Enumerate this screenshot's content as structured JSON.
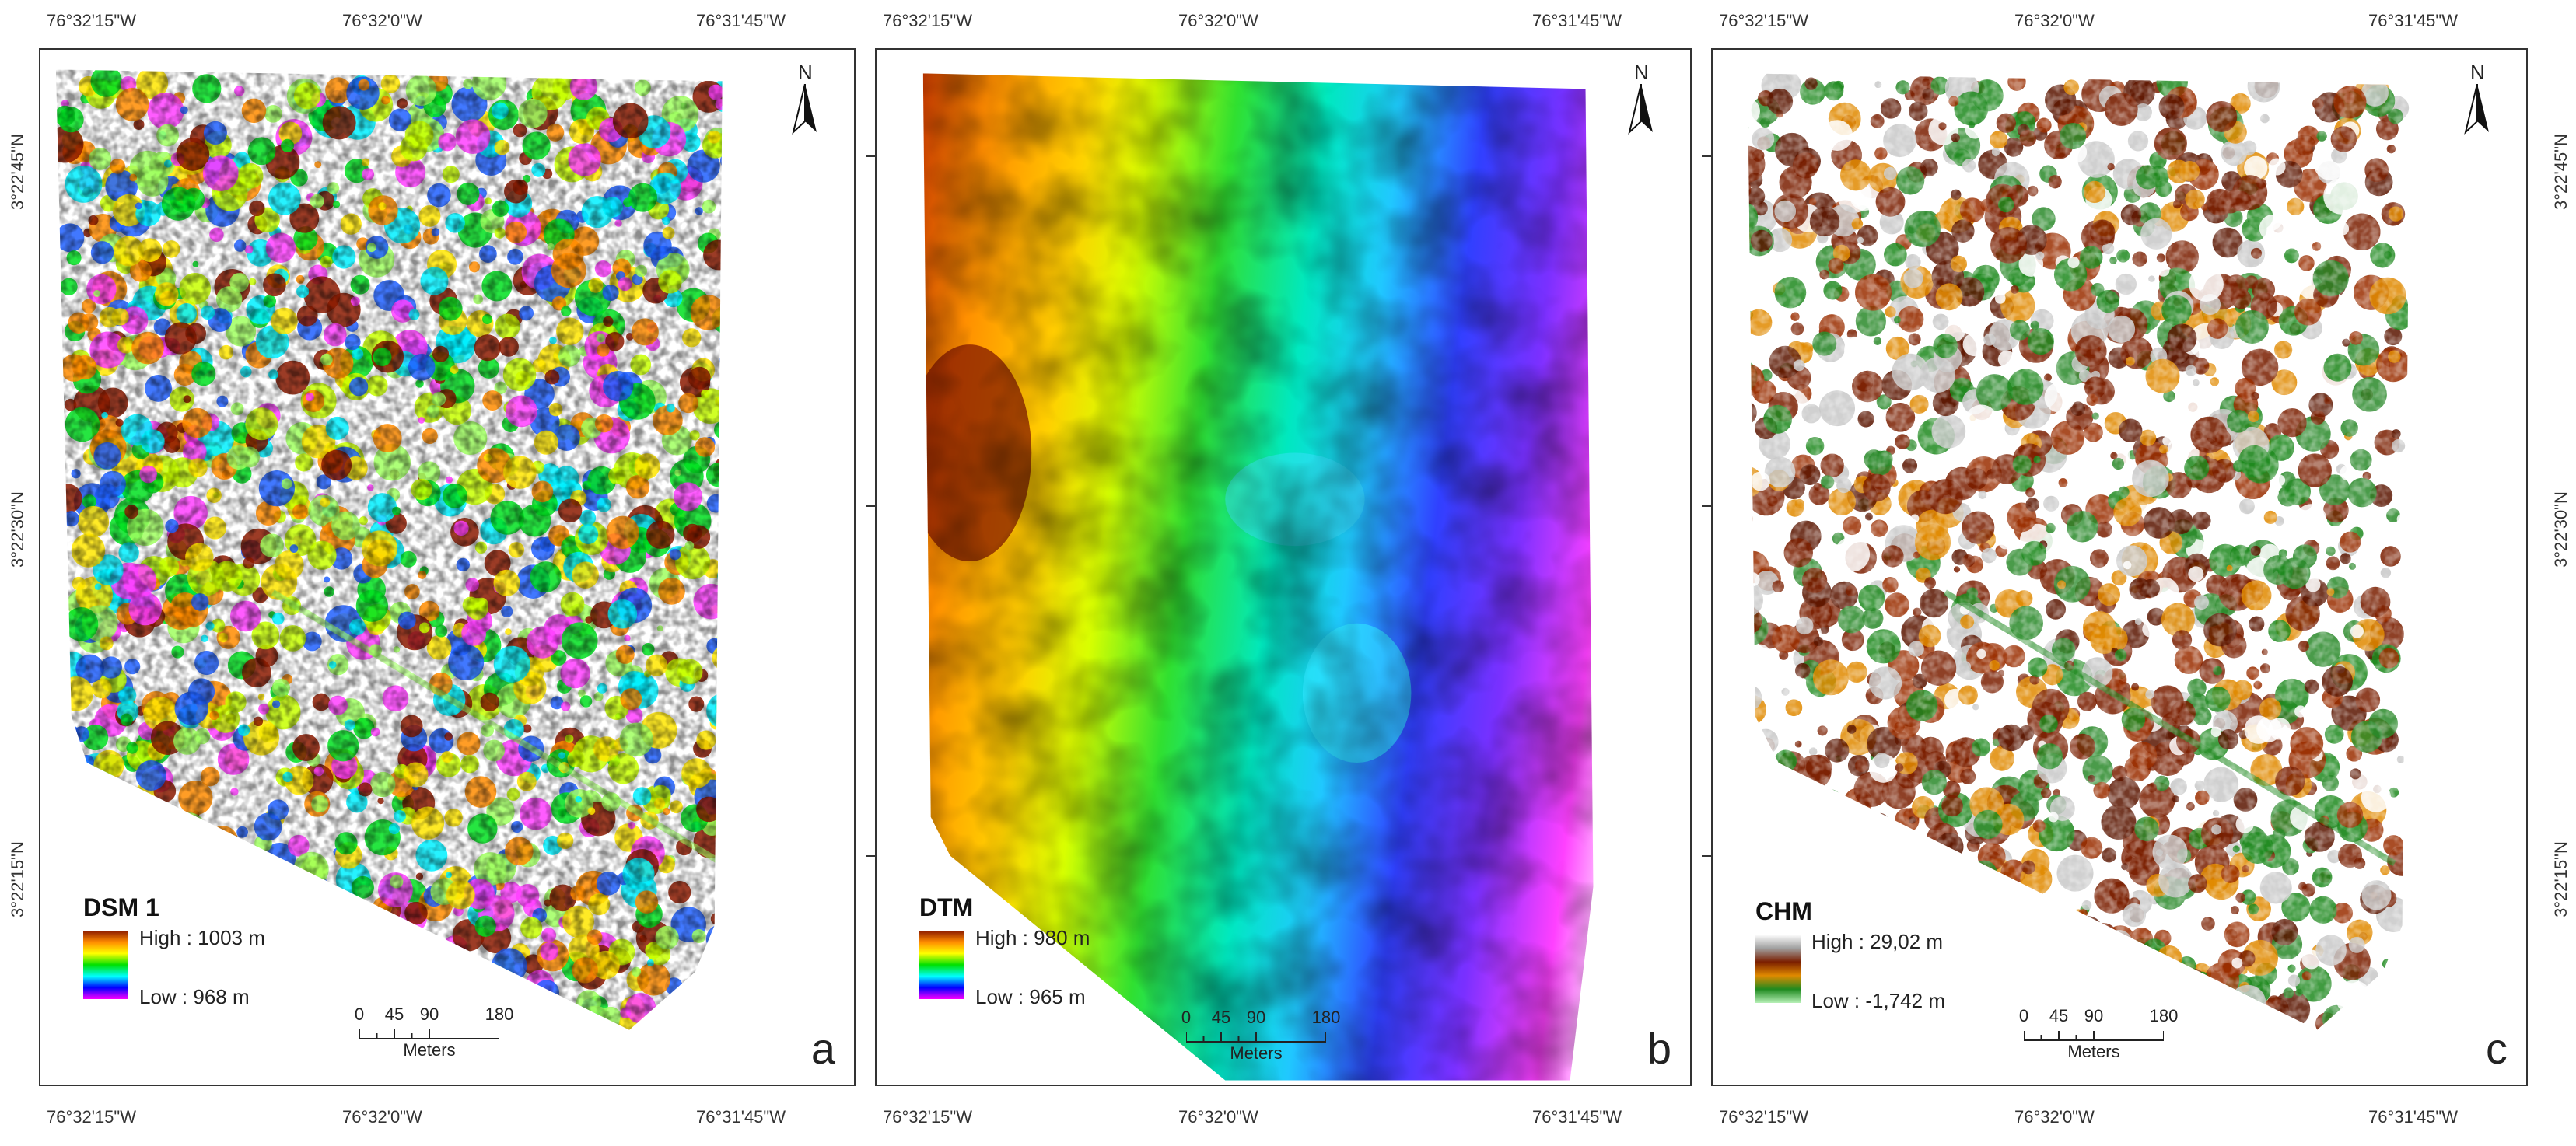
{
  "panels": [
    {
      "id": "a",
      "letter": "a",
      "legend_title": "DSM 1",
      "legend_high": "High : 1003 m",
      "legend_low": "Low : 968 m",
      "ramp_colors": [
        "#8b1a00",
        "#ff8c00",
        "#ffff00",
        "#00e000",
        "#00ffff",
        "#0000ff",
        "#ff00ff"
      ]
    },
    {
      "id": "b",
      "letter": "b",
      "legend_title": "DTM",
      "legend_high": "High : 980 m",
      "legend_low": "Low : 965 m",
      "ramp_colors": [
        "#8b1a00",
        "#ff8c00",
        "#ffff00",
        "#00e000",
        "#00ffff",
        "#0000ff",
        "#ff00ff"
      ]
    },
    {
      "id": "c",
      "letter": "c",
      "legend_title": "CHM",
      "legend_high": "High : 29,02 m",
      "legend_low": "Low : -1,742 m",
      "ramp_colors": [
        "#ffffff",
        "#a0a0a0",
        "#7a1e00",
        "#e08a00",
        "#1f8a1f",
        "#b6f0b6"
      ]
    }
  ],
  "grid_labels": {
    "lon": [
      "76°32'15\"W",
      "76°32'0\"W",
      "76°31'45\"W"
    ],
    "lat": [
      "3°22'45\"N",
      "3°22'30\"N",
      "3°22'15\"N"
    ]
  },
  "scale_bar": {
    "ticks": [
      "0",
      "45",
      "90",
      "180"
    ],
    "unit": "Meters"
  },
  "north_label": "N"
}
